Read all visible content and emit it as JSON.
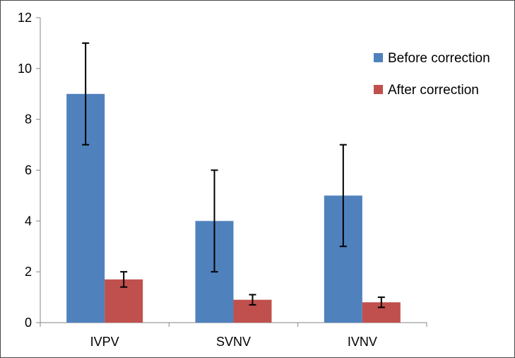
{
  "chart_data": {
    "type": "bar",
    "title": "",
    "xlabel": "",
    "ylabel": "",
    "categories": [
      "IVPV",
      "SVNV",
      "IVNV"
    ],
    "ylim": [
      0,
      12
    ],
    "yticks": [
      0,
      2,
      4,
      6,
      8,
      10,
      12
    ],
    "grid": false,
    "legend_position": "top-right",
    "series": [
      {
        "name": "Before correction",
        "color": "#4f81bd",
        "values": [
          9,
          4,
          5
        ],
        "errors": [
          2,
          2,
          2
        ]
      },
      {
        "name": "After correction",
        "color": "#c0504d",
        "values": [
          1.7,
          0.9,
          0.8
        ],
        "errors": [
          0.3,
          0.2,
          0.2
        ]
      }
    ]
  }
}
